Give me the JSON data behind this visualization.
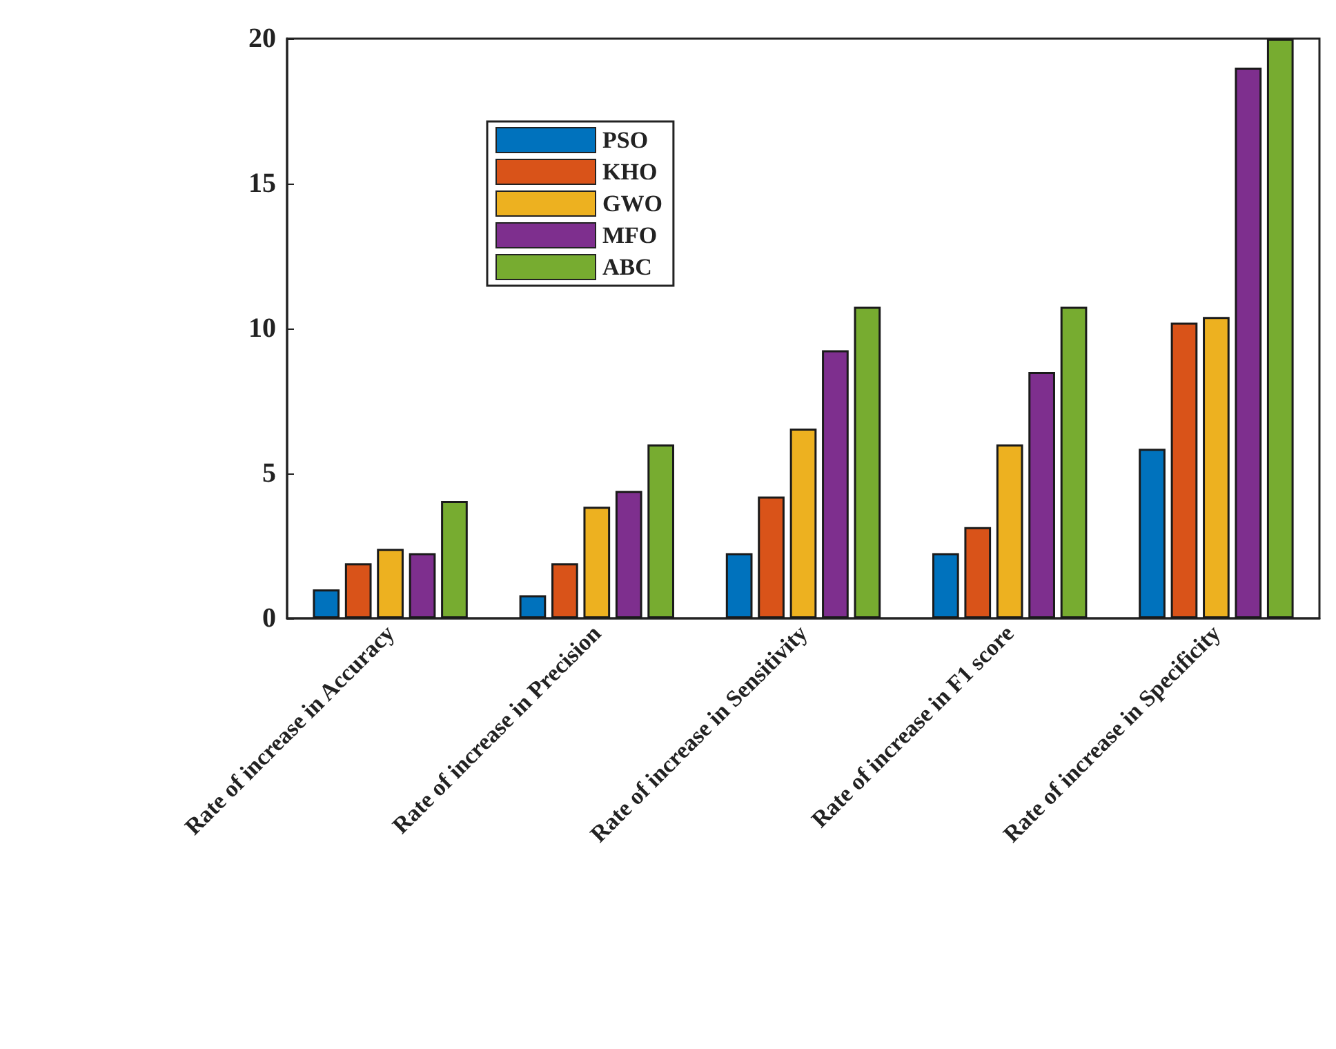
{
  "chart_data": {
    "type": "bar",
    "categories": [
      "Rate of increase in Accuracy",
      "Rate of increase in Precision",
      "Rate of increase in Sensitivity",
      "Rate of increase in F1 score",
      "Rate of increase in Specificity"
    ],
    "series": [
      {
        "name": "PSO",
        "color": "#0072bd",
        "values": [
          1.0,
          0.8,
          2.25,
          2.25,
          5.85
        ]
      },
      {
        "name": "KHO",
        "color": "#d95319",
        "values": [
          1.9,
          1.9,
          4.2,
          3.15,
          10.2
        ]
      },
      {
        "name": "GWO",
        "color": "#edb120",
        "values": [
          2.4,
          3.85,
          6.55,
          6.0,
          10.4
        ]
      },
      {
        "name": "MFO",
        "color": "#7e2f8e",
        "values": [
          2.25,
          4.4,
          9.25,
          8.5,
          19.0
        ]
      },
      {
        "name": "ABC",
        "color": "#77ac30",
        "values": [
          4.05,
          6.0,
          10.75,
          10.75,
          20.0
        ]
      }
    ],
    "ylim": [
      0,
      20
    ],
    "yticks": [
      0,
      5,
      10,
      15,
      20
    ],
    "grid": false,
    "legend": "top left"
  }
}
